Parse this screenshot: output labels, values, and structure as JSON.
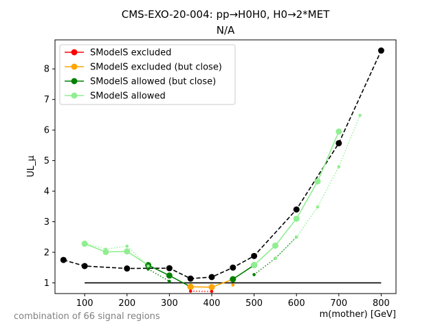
{
  "chart_data": {
    "type": "line",
    "title": "CMS-EXO-20-004: pp→H0H0, H0→2*MET",
    "subtitle": "N/A",
    "xlabel": "m(mother) [GeV]",
    "ylabel": "UL_μ",
    "xlim": [
      30,
      835
    ],
    "ylim": [
      0.65,
      8.95
    ],
    "xticks": [
      100,
      200,
      300,
      400,
      500,
      600,
      700,
      800
    ],
    "yticks": [
      1,
      2,
      3,
      4,
      5,
      6,
      7,
      8
    ],
    "grid": false,
    "legend_position": "upper-left",
    "legend": [
      {
        "label": "SModelS excluded",
        "color": "#ff0000"
      },
      {
        "label": "SModelS excluded (but close)",
        "color": "#ffa500"
      },
      {
        "label": "SModelS allowed (but close)",
        "color": "#008000"
      },
      {
        "label": "SModelS allowed",
        "color": "#90ee90"
      }
    ],
    "series": [
      {
        "style": "black-dashed",
        "color": "#000000",
        "x": [
          50,
          100,
          200,
          300,
          350,
          400,
          450,
          500,
          600,
          700,
          800
        ],
        "y": [
          1.75,
          1.55,
          1.47,
          1.48,
          1.14,
          1.19,
          1.5,
          1.88,
          3.4,
          5.57,
          8.6
        ]
      },
      {
        "style": "reference-line",
        "color": "#000000",
        "x": [
          100,
          800
        ],
        "y": [
          1.0,
          1.0
        ]
      },
      {
        "style": "solid",
        "color": "#90ee90",
        "x": [
          100,
          150,
          200,
          250
        ],
        "y": [
          2.28,
          2.01,
          2.03,
          1.58
        ]
      },
      {
        "style": "solid",
        "color": "#008000",
        "x": [
          250,
          300,
          350
        ],
        "y": [
          1.58,
          1.24,
          0.87
        ]
      },
      {
        "style": "solid",
        "color": "#ffa500",
        "x": [
          350,
          400,
          450
        ],
        "y": [
          0.87,
          0.86,
          1.12
        ]
      },
      {
        "style": "solid",
        "color": "#008000",
        "x": [
          450,
          500
        ],
        "y": [
          1.12,
          1.58
        ]
      },
      {
        "style": "solid",
        "color": "#90ee90",
        "x": [
          500,
          550,
          600,
          650,
          700
        ],
        "y": [
          1.58,
          2.22,
          3.1,
          4.32,
          5.95
        ]
      },
      {
        "style": "dotted",
        "color": "#90ee90",
        "x": [
          100,
          150,
          200,
          250
        ],
        "y": [
          2.3,
          2.1,
          2.2,
          1.55
        ]
      },
      {
        "style": "dotted",
        "color": "#008000",
        "x": [
          250,
          300
        ],
        "y": [
          1.45,
          1.05
        ]
      },
      {
        "style": "dotted",
        "color": "#ff0000",
        "x": [
          350,
          400
        ],
        "y": [
          0.73,
          0.72
        ]
      },
      {
        "style": "dotted",
        "color": "#ffa500",
        "x": [
          450
        ],
        "y": [
          0.93
        ]
      },
      {
        "style": "dotted",
        "color": "#008000",
        "x": [
          500,
          550,
          600
        ],
        "y": [
          1.27,
          1.8,
          2.5
        ]
      },
      {
        "style": "dotted",
        "color": "#90ee90",
        "x": [
          550,
          600,
          650,
          700,
          750
        ],
        "y": [
          1.8,
          2.5,
          3.48,
          4.8,
          6.48
        ]
      }
    ],
    "footnote": "combination of 66 signal regions"
  }
}
